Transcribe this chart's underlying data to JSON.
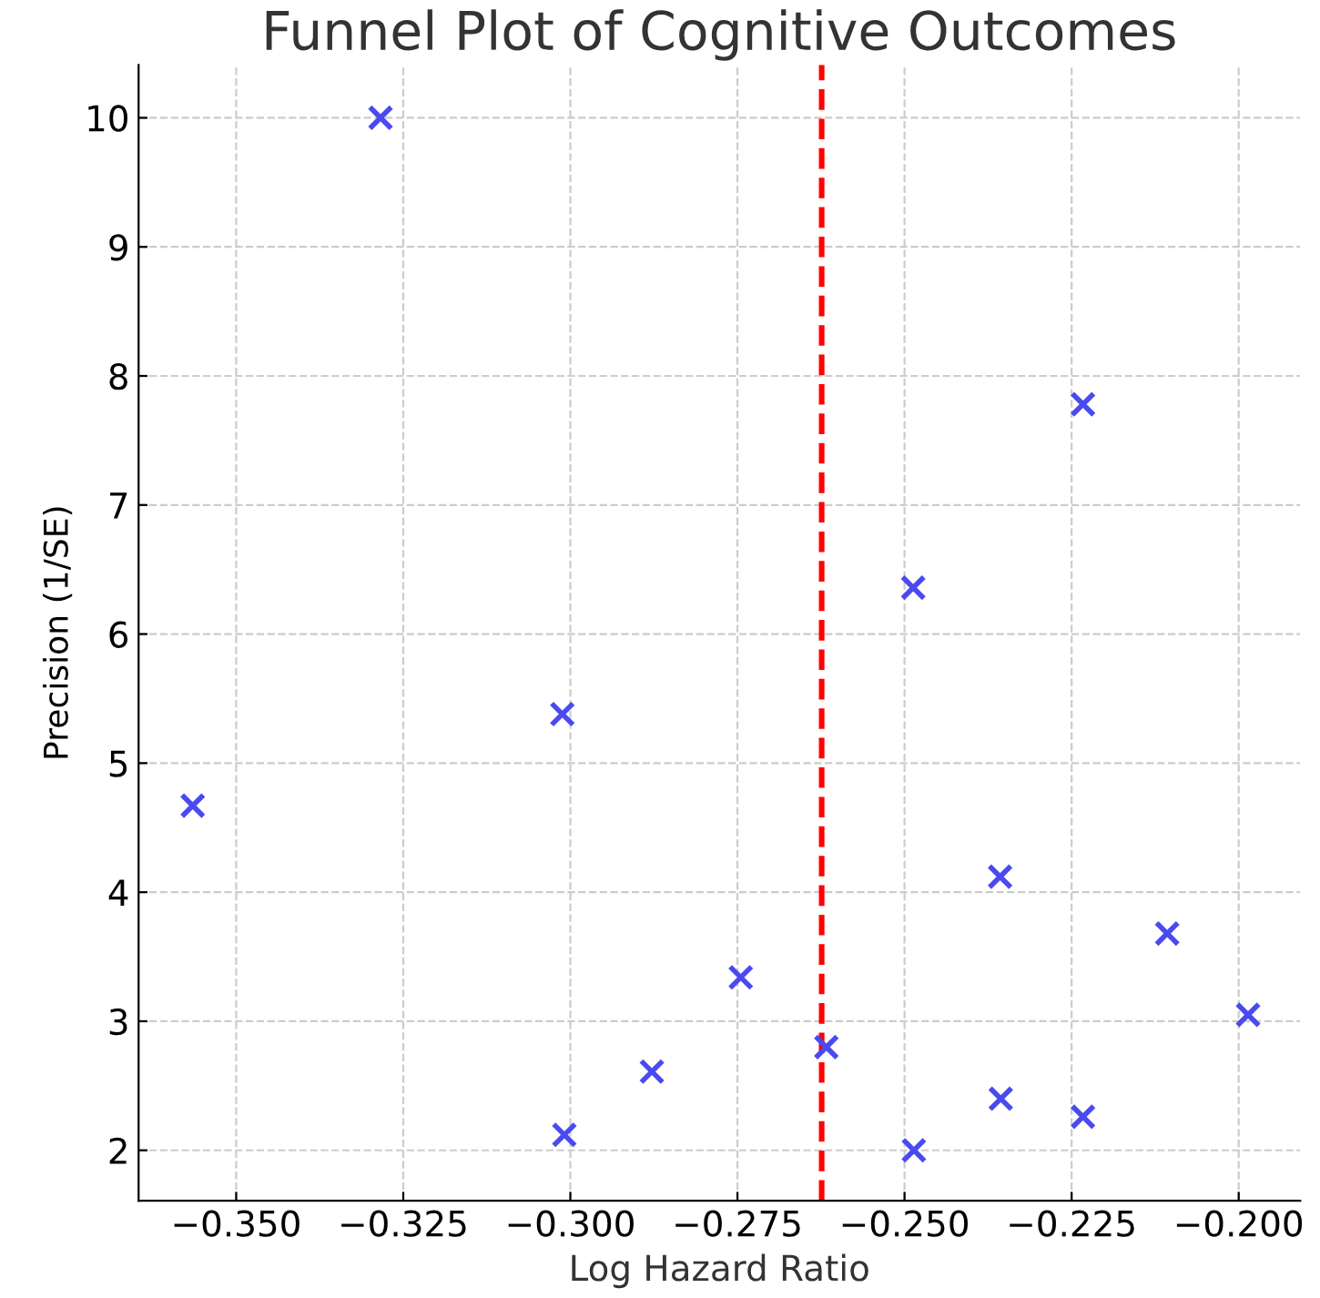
{
  "chart_data": {
    "type": "scatter",
    "title": "Funnel Plot of Cognitive Outcomes",
    "xlabel": "Log Hazard Ratio",
    "ylabel": "Precision (1/SE)",
    "series": [
      {
        "color": "#4a4af0",
        "x": [
          -0.3565,
          -0.3284,
          -0.3012,
          -0.3009,
          -0.2878,
          -0.2745,
          -0.2617,
          -0.2487,
          -0.2486,
          -0.2357,
          -0.2356,
          -0.2233,
          -0.2233,
          -0.2107,
          -0.1986
        ],
        "values": [
          4.67,
          10.0,
          5.38,
          2.12,
          2.61,
          3.34,
          2.8,
          6.36,
          2.0,
          4.12,
          2.4,
          7.78,
          2.26,
          3.68,
          3.05
        ]
      }
    ],
    "marker": "cross",
    "xlim": [
      -0.3646,
      -0.1908
    ],
    "ylim": [
      1.61,
      10.41
    ],
    "xticks": [
      {
        "value": -0.35,
        "label": "−0.350"
      },
      {
        "value": -0.325,
        "label": "−0.325"
      },
      {
        "value": -0.3,
        "label": "−0.300"
      },
      {
        "value": -0.275,
        "label": "−0.275"
      },
      {
        "value": -0.25,
        "label": "−0.250"
      },
      {
        "value": -0.225,
        "label": "−0.225"
      },
      {
        "value": -0.2,
        "label": "−0.200"
      }
    ],
    "yticks": [
      2,
      3,
      4,
      5,
      6,
      7,
      8,
      9,
      10
    ],
    "ref_lines": [
      {
        "axis": "x",
        "value": -0.2624,
        "color": "#ff0000",
        "line_style": "dashed"
      }
    ],
    "grid": true
  }
}
